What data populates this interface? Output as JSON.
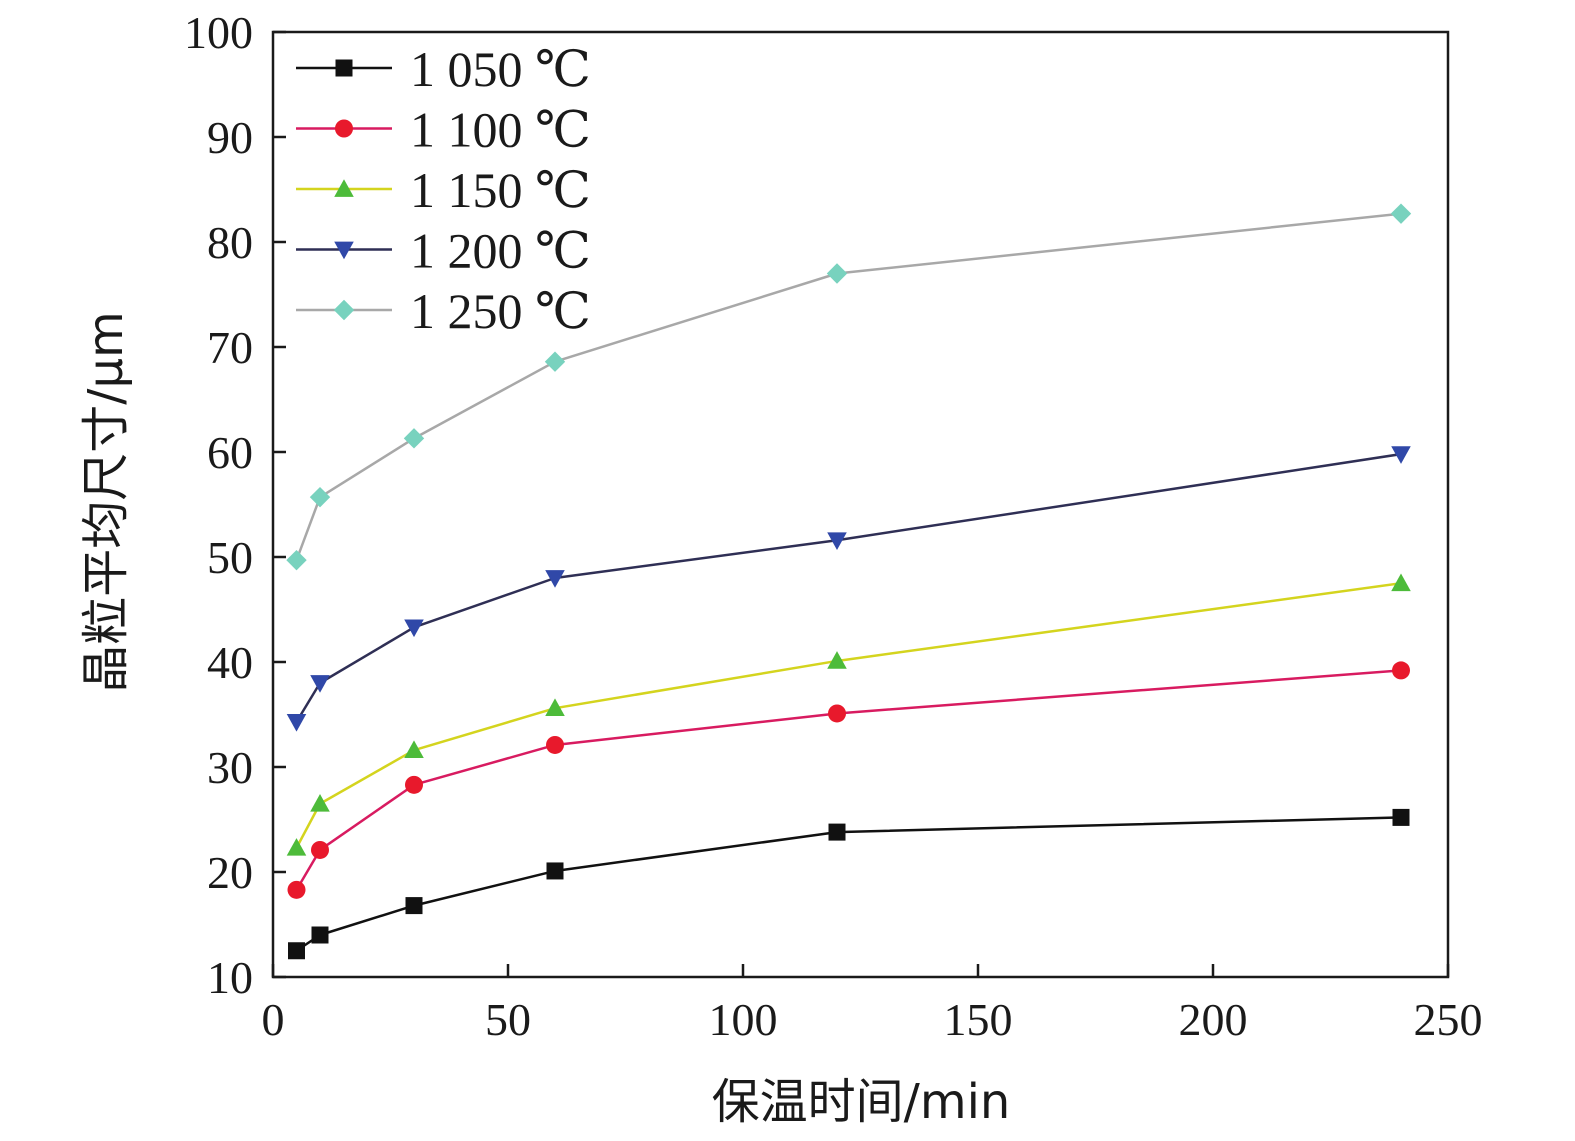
{
  "chart_data": {
    "type": "line",
    "xlabel": "保温时间/min",
    "ylabel": "晶粒平均尺寸/μm",
    "xlim": [
      0,
      250
    ],
    "ylim": [
      10,
      100
    ],
    "xticks": [
      0,
      50,
      100,
      150,
      200,
      250
    ],
    "yticks": [
      10,
      20,
      30,
      40,
      50,
      60,
      70,
      80,
      90,
      100
    ],
    "grid": false,
    "legend_position": "top-left",
    "x": [
      5,
      10,
      30,
      60,
      120,
      240
    ],
    "series": [
      {
        "name": "1 050 ℃",
        "marker": "square",
        "color": "#111111",
        "line_color": "#111111",
        "values": [
          12.5,
          14.0,
          16.8,
          20.1,
          23.8,
          25.2
        ]
      },
      {
        "name": "1 100 ℃",
        "marker": "circle",
        "color": "#e8192c",
        "line_color": "#d81b60",
        "values": [
          18.3,
          22.1,
          28.3,
          32.1,
          35.1,
          39.2
        ]
      },
      {
        "name": "1 150 ℃",
        "marker": "triangle-up",
        "color": "#4dbb3a",
        "line_color": "#d4d41e",
        "values": [
          22.3,
          26.5,
          31.6,
          35.6,
          40.1,
          47.5
        ]
      },
      {
        "name": "1 200 ℃",
        "marker": "triangle-down",
        "color": "#3048a8",
        "line_color": "#2f2f55",
        "values": [
          34.3,
          38.0,
          43.3,
          48.0,
          51.6,
          59.8
        ]
      },
      {
        "name": "1 250 ℃",
        "marker": "diamond",
        "color": "#78d2be",
        "line_color": "#a8a8a8",
        "values": [
          49.7,
          55.7,
          61.3,
          68.6,
          77.0,
          82.7
        ]
      }
    ]
  }
}
